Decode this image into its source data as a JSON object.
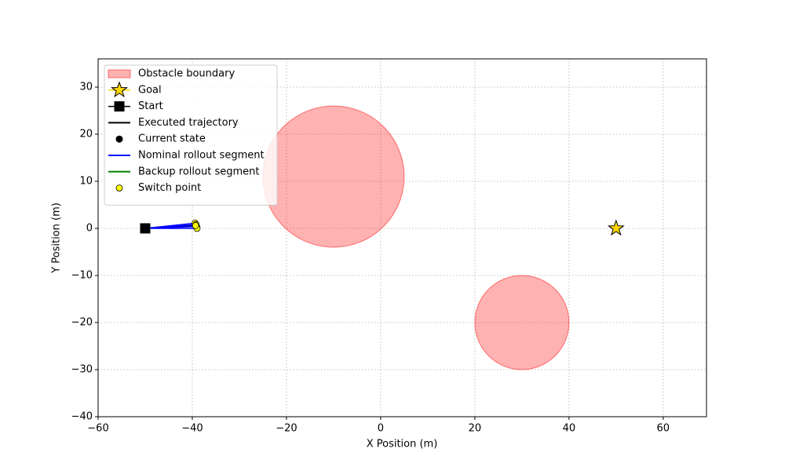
{
  "chart_data": {
    "type": "scatter",
    "xlabel": "X Position (m)",
    "ylabel": "Y Position (m)",
    "xlim": [
      -60,
      69.2
    ],
    "ylim": [
      -40,
      36
    ],
    "xticks": [
      {
        "value": -60,
        "label": "−60"
      },
      {
        "value": -40,
        "label": "−40"
      },
      {
        "value": -20,
        "label": "−20"
      },
      0,
      20,
      40,
      60
    ],
    "yticks": [
      {
        "value": -40,
        "label": "−40"
      },
      {
        "value": -30,
        "label": "−30"
      },
      {
        "value": -20,
        "label": "−20"
      },
      {
        "value": -10,
        "label": "−10"
      },
      0,
      10,
      20,
      30
    ],
    "grid": true,
    "legend": "upper left",
    "series": [
      {
        "name": "Obstacle boundary",
        "marker": "region",
        "color": "#ff0000",
        "alpha": 0.3,
        "x": [
          -10,
          30
        ],
        "values": [
          11,
          -20
        ],
        "sizes": [
          15,
          10
        ]
      },
      {
        "name": "Goal",
        "marker": "star",
        "color": "#ffd700",
        "x": [
          50
        ],
        "values": [
          0
        ]
      },
      {
        "name": "Start",
        "marker": "square",
        "color": "#000000",
        "x": [
          -50
        ],
        "values": [
          0
        ]
      },
      {
        "name": "Executed trajectory",
        "marker": "line",
        "color": "#000000",
        "x": [
          -50,
          -39.2
        ],
        "values": [
          0,
          0.6
        ]
      },
      {
        "name": "Current state",
        "marker": "dot",
        "color": "#000000",
        "x": [
          -39.2
        ],
        "values": [
          0.6
        ]
      },
      {
        "name": "Nominal rollout segment",
        "marker": "line",
        "color": "#0000ff",
        "x": [
          -50,
          -39.4,
          null,
          -50,
          -39.1,
          null,
          -50,
          -39.2,
          null,
          -50,
          -39
        ],
        "values": [
          0,
          1.1,
          null,
          0,
          0.4,
          null,
          0,
          0.8,
          null,
          0,
          0
        ]
      },
      {
        "name": "Backup rollout segment",
        "marker": "line",
        "color": "#008000",
        "x": [],
        "values": []
      },
      {
        "name": "Switch point",
        "marker": "circle",
        "color": "#ffff00",
        "x": [
          -39.4,
          -39.1,
          -39.2,
          -39,
          -39.3
        ],
        "values": [
          1.1,
          0.4,
          0.8,
          0,
          0.6
        ]
      }
    ]
  }
}
